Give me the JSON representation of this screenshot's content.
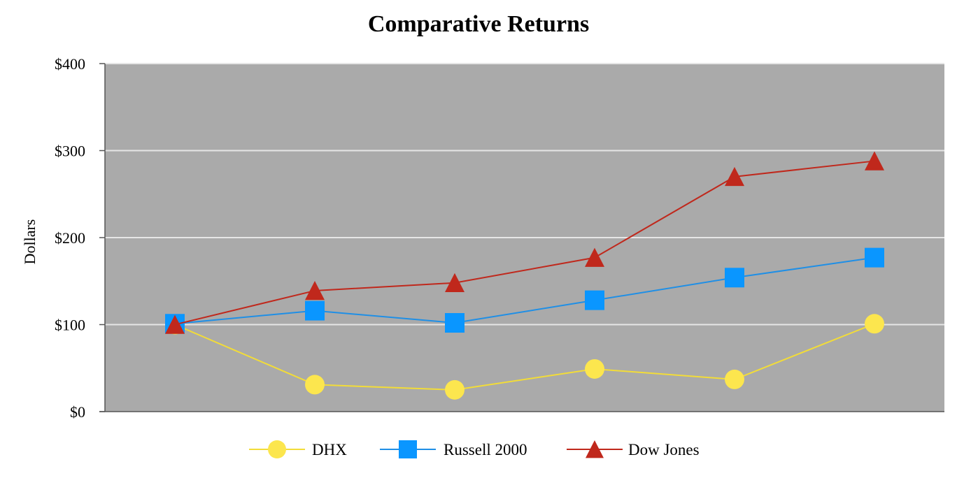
{
  "chart_data": {
    "type": "line",
    "title": "Comparative Returns",
    "xlabel": "",
    "ylabel": "Dollars",
    "ylim": [
      0,
      400
    ],
    "yticks": [
      0,
      100,
      200,
      300,
      400
    ],
    "ytick_labels": [
      "$0",
      "$100",
      "$200",
      "$300",
      "$400"
    ],
    "x": [
      1,
      2,
      3,
      4,
      5,
      6
    ],
    "grid": true,
    "legend_position": "bottom",
    "plot_background": "#aaaaaa",
    "series": [
      {
        "name": "DHX",
        "marker": "circle",
        "color": "#f2dc38",
        "marker_color": "#fce64e",
        "values": [
          100,
          31,
          25,
          49,
          37,
          101
        ]
      },
      {
        "name": "Russell 2000",
        "marker": "square",
        "color": "#1f8fe6",
        "marker_color": "#0a96ff",
        "values": [
          101,
          116,
          102,
          128,
          154,
          177
        ]
      },
      {
        "name": "Dow Jones",
        "marker": "triangle",
        "color": "#c0281c",
        "marker_color": "#c0281c",
        "values": [
          100,
          139,
          148,
          177,
          270,
          288
        ]
      }
    ]
  }
}
